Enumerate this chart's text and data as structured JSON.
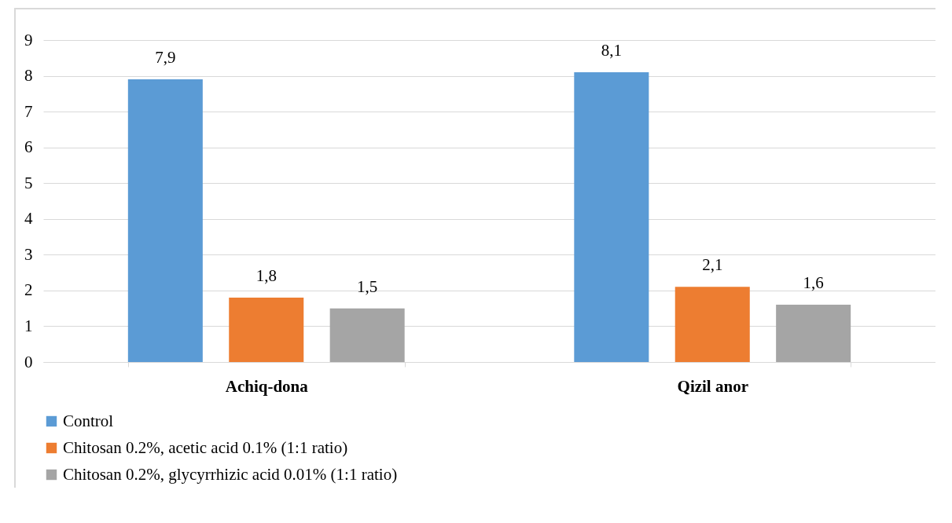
{
  "chart_data": {
    "type": "bar",
    "categories": [
      "Achiq-dona",
      "Qizil anor"
    ],
    "series": [
      {
        "name": "Control",
        "color": "#5b9bd5",
        "values": [
          7.9,
          8.1
        ],
        "value_labels": [
          "7,9",
          "8,1"
        ]
      },
      {
        "name": "Chitosan 0.2%, acetic acid 0.1% (1:1 ratio)",
        "color": "#ed7d31",
        "values": [
          1.8,
          2.1
        ],
        "value_labels": [
          "1,8",
          "2,1"
        ]
      },
      {
        "name": "Chitosan 0.2%, glycyrrhizic acid 0.01% (1:1 ratio)",
        "color": "#a5a5a5",
        "values": [
          1.5,
          1.6
        ],
        "value_labels": [
          "1,5",
          "1,6"
        ]
      }
    ],
    "ylim": [
      0,
      9
    ],
    "yticks": [
      0,
      1,
      2,
      3,
      4,
      5,
      6,
      7,
      8,
      9
    ],
    "grid": "y",
    "legend": "bottom"
  }
}
